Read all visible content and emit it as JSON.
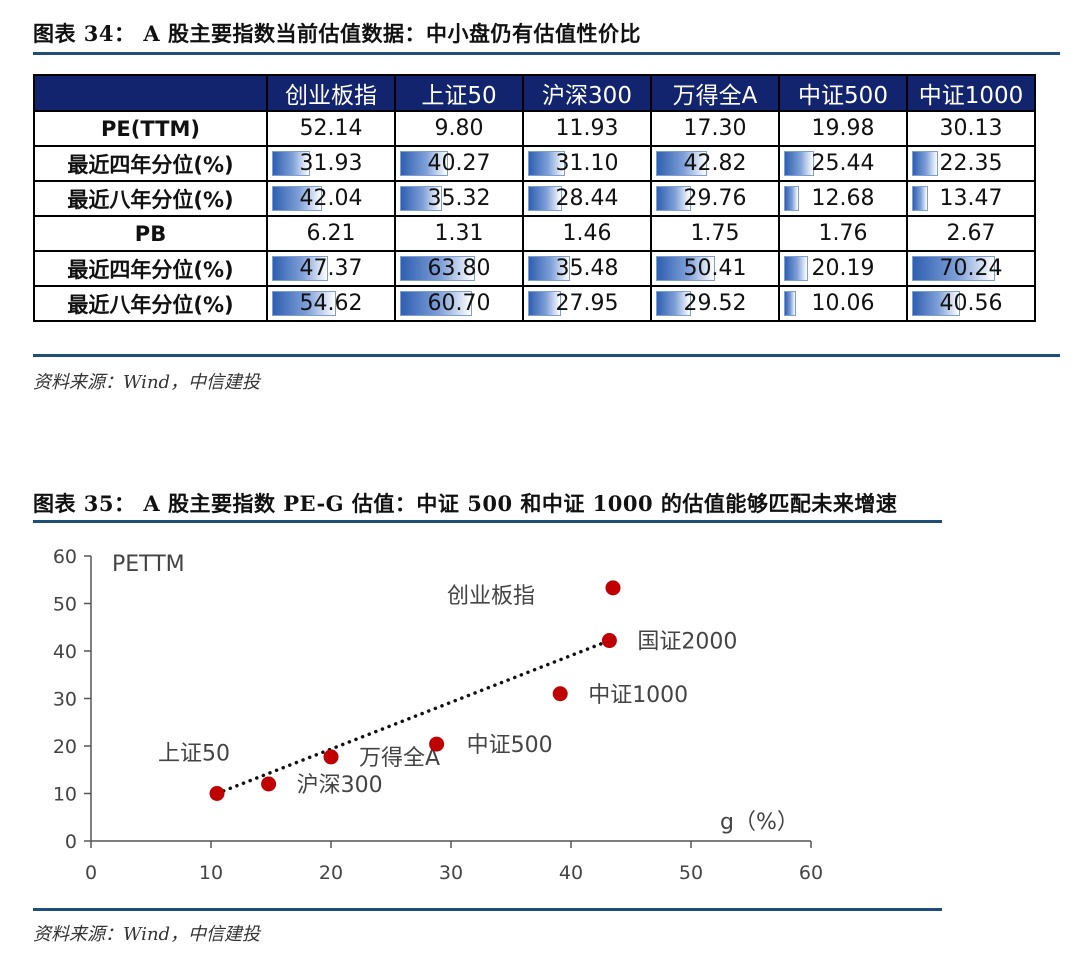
{
  "fig34": {
    "title": "图表 34：  A 股主要指数当前估值数据：中小盘仍有估值性价比",
    "source": "资料来源：Wind，中信建投",
    "columns": [
      "创业板指",
      "上证50",
      "沪深300",
      "万得全A",
      "中证500",
      "中证1000"
    ],
    "rows": [
      {
        "label": "PE(TTM)",
        "kind": "plain",
        "values": [
          "52.14",
          "9.80",
          "11.93",
          "17.30",
          "19.98",
          "30.13"
        ]
      },
      {
        "label": "最近四年分位(%)",
        "kind": "bar",
        "values": [
          "31.93",
          "40.27",
          "31.10",
          "42.82",
          "25.44",
          "22.35"
        ]
      },
      {
        "label": "最近八年分位(%)",
        "kind": "bar",
        "values": [
          "42.04",
          "35.32",
          "28.44",
          "29.76",
          "12.68",
          "13.47"
        ]
      },
      {
        "label": "PB",
        "kind": "plain",
        "values": [
          "6.21",
          "1.31",
          "1.46",
          "1.75",
          "1.76",
          "2.67"
        ]
      },
      {
        "label": "最近四年分位(%)",
        "kind": "bar",
        "values": [
          "47.37",
          "63.80",
          "35.48",
          "50.41",
          "20.19",
          "70.24"
        ]
      },
      {
        "label": "最近八年分位(%)",
        "kind": "bar",
        "values": [
          "54.62",
          "60.70",
          "27.95",
          "29.52",
          "10.06",
          "40.56"
        ]
      }
    ]
  },
  "fig35": {
    "title": "图表 35：  A 股主要指数 PE-G 估值：中证 500 和中证 1000 的估值能够匹配未来增速",
    "source": "资料来源：Wind，中信建投"
  },
  "chart_data": {
    "type": "scatter",
    "title": "",
    "xlabel": "g（%）",
    "ylabel": "PETTM",
    "xlim": [
      0,
      60
    ],
    "ylim": [
      0,
      60
    ],
    "xticks": [
      0,
      10,
      20,
      30,
      40,
      50,
      60
    ],
    "yticks": [
      0,
      10,
      20,
      30,
      40,
      50,
      60
    ],
    "grid": false,
    "marker_color": "#c00000",
    "trendline": {
      "style": "dotted",
      "color": "#111111",
      "x": [
        10.5,
        43.2
      ],
      "y": [
        10.0,
        42.2
      ]
    },
    "points": [
      {
        "name": "上证50",
        "x": 10.5,
        "y": 10.0
      },
      {
        "name": "沪深300",
        "x": 14.8,
        "y": 12.0
      },
      {
        "name": "万得全A",
        "x": 20.0,
        "y": 17.7
      },
      {
        "name": "中证500",
        "x": 28.8,
        "y": 20.4
      },
      {
        "name": "中证1000",
        "x": 39.1,
        "y": 31.0
      },
      {
        "name": "国证2000",
        "x": 43.2,
        "y": 42.2
      },
      {
        "name": "创业板指",
        "x": 43.5,
        "y": 53.3
      }
    ]
  }
}
